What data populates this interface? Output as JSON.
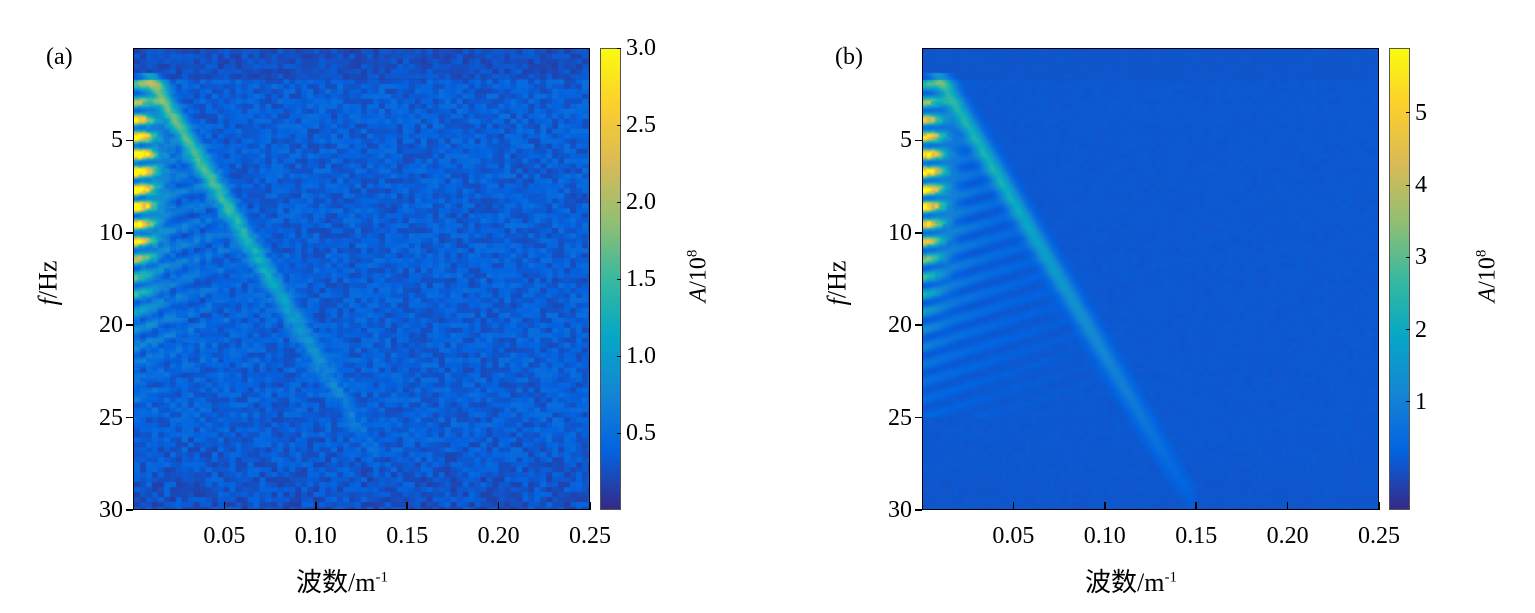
{
  "chart_data": [
    {
      "type": "heatmap",
      "panel_label": "(a)",
      "xlabel": "波数/m",
      "xlabel_sup": "-1",
      "ylabel_italic": "f",
      "ylabel_rest": "/Hz",
      "xlim": [
        0,
        0.25
      ],
      "x_ticks": [
        0.05,
        0.1,
        0.15,
        0.2,
        0.25
      ],
      "x_tick_labels": [
        "0.05",
        "0.10",
        "0.15",
        "0.20",
        "0.25"
      ],
      "y_tick_labels": [
        "5",
        "10",
        "20",
        "25",
        "30"
      ],
      "ylim": [
        0,
        30
      ],
      "y_direction": "down",
      "colorbar": {
        "label_italic": "A",
        "label_rest": "/10",
        "label_sup": "8",
        "clim": [
          0,
          3.0
        ],
        "ticks": [
          0.5,
          1.0,
          1.5,
          2.0,
          2.5,
          3.0
        ],
        "tick_labels": [
          "0.5",
          "1.0",
          "1.5",
          "2.0",
          "2.5",
          "3.0"
        ],
        "colormap": "parula"
      },
      "features": {
        "background": 0.35,
        "low_k_band_peak": 3.0,
        "ridge": {
          "k_start": 0.01,
          "f_start": 2,
          "k_end": 0.125,
          "f_end": 25,
          "amplitude": 1.2
        },
        "noise": 0.15
      }
    },
    {
      "type": "heatmap",
      "panel_label": "(b)",
      "xlabel": "波数/m",
      "xlabel_sup": "-1",
      "ylabel_italic": "f",
      "ylabel_rest": "/Hz",
      "xlim": [
        0,
        0.25
      ],
      "x_ticks": [
        0.05,
        0.1,
        0.15,
        0.2,
        0.25
      ],
      "x_tick_labels": [
        "0.05",
        "0.10",
        "0.15",
        "0.20",
        "0.25"
      ],
      "y_tick_labels": [
        "5",
        "10",
        "20",
        "25",
        "30"
      ],
      "ylim": [
        0,
        30
      ],
      "y_direction": "down",
      "colorbar": {
        "label_italic": "A",
        "label_rest": "/10",
        "label_sup": "8",
        "clim": [
          -0.5,
          5.9
        ],
        "ticks": [
          1,
          2,
          3,
          4,
          5
        ],
        "tick_labels": [
          "1",
          "2",
          "3",
          "4",
          "5"
        ],
        "colormap": "parula"
      },
      "features": {
        "background": 0.15,
        "low_k_band_peak": 5.5,
        "ridge": {
          "k_start": 0.01,
          "f_start": 2,
          "k_end": 0.14,
          "f_end": 28,
          "amplitude": 2.0
        },
        "noise": 0.03
      }
    }
  ],
  "colors": {
    "parula": [
      "#352a87",
      "#0363e1",
      "#1485d4",
      "#06a7c6",
      "#38b99e",
      "#92bf73",
      "#d9ba56",
      "#fcce2e",
      "#f9fb0e"
    ]
  }
}
